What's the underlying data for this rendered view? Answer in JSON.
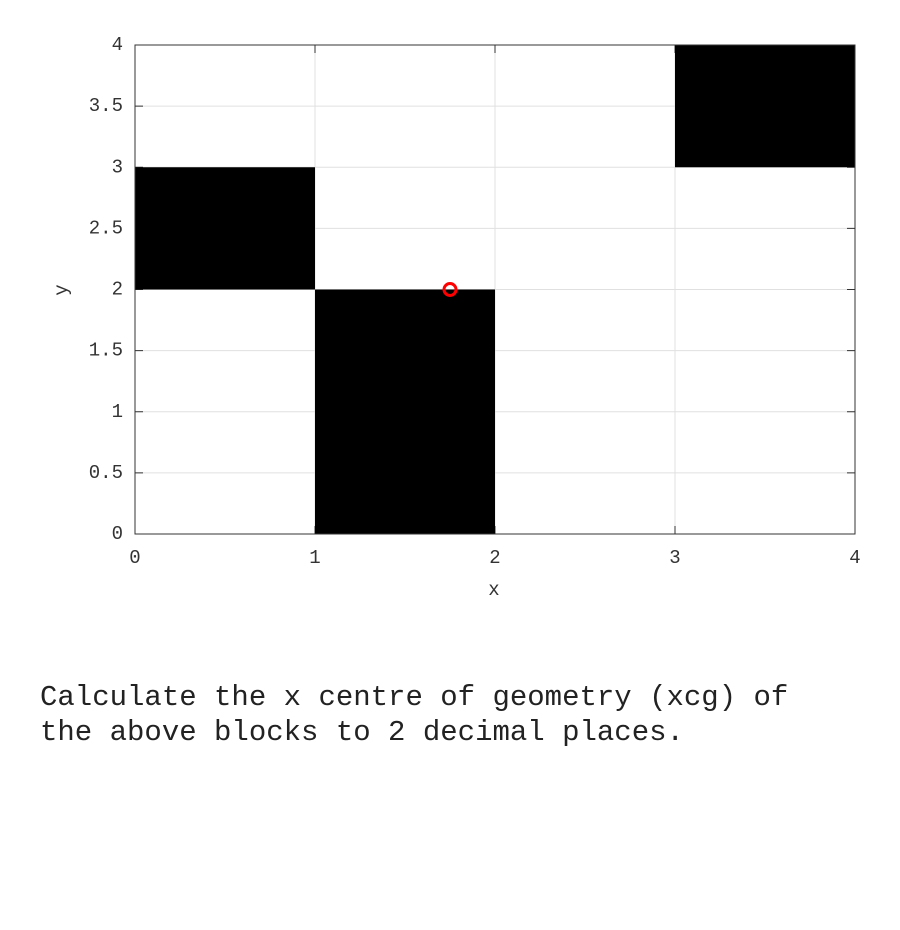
{
  "chart_data": {
    "type": "blocks",
    "xlabel": "x",
    "ylabel": "y",
    "xlim": [
      0,
      4
    ],
    "ylim": [
      0,
      4
    ],
    "xticks": [
      0,
      1,
      2,
      3,
      4
    ],
    "yticks": [
      0,
      0.5,
      1,
      1.5,
      2,
      2.5,
      3,
      3.5,
      4
    ],
    "grid": true,
    "color": "#000000",
    "blocks": [
      {
        "x": [
          0,
          1
        ],
        "y": [
          2,
          3
        ]
      },
      {
        "x": [
          1,
          2
        ],
        "y": [
          0,
          2
        ]
      },
      {
        "x": [
          3,
          4
        ],
        "y": [
          3,
          4
        ]
      }
    ],
    "marker": {
      "x": 1.75,
      "y": 2,
      "color": "#ff0000"
    }
  },
  "question": "Calculate the x centre of geometry (xcg) of the above blocks to 2 decimal places."
}
